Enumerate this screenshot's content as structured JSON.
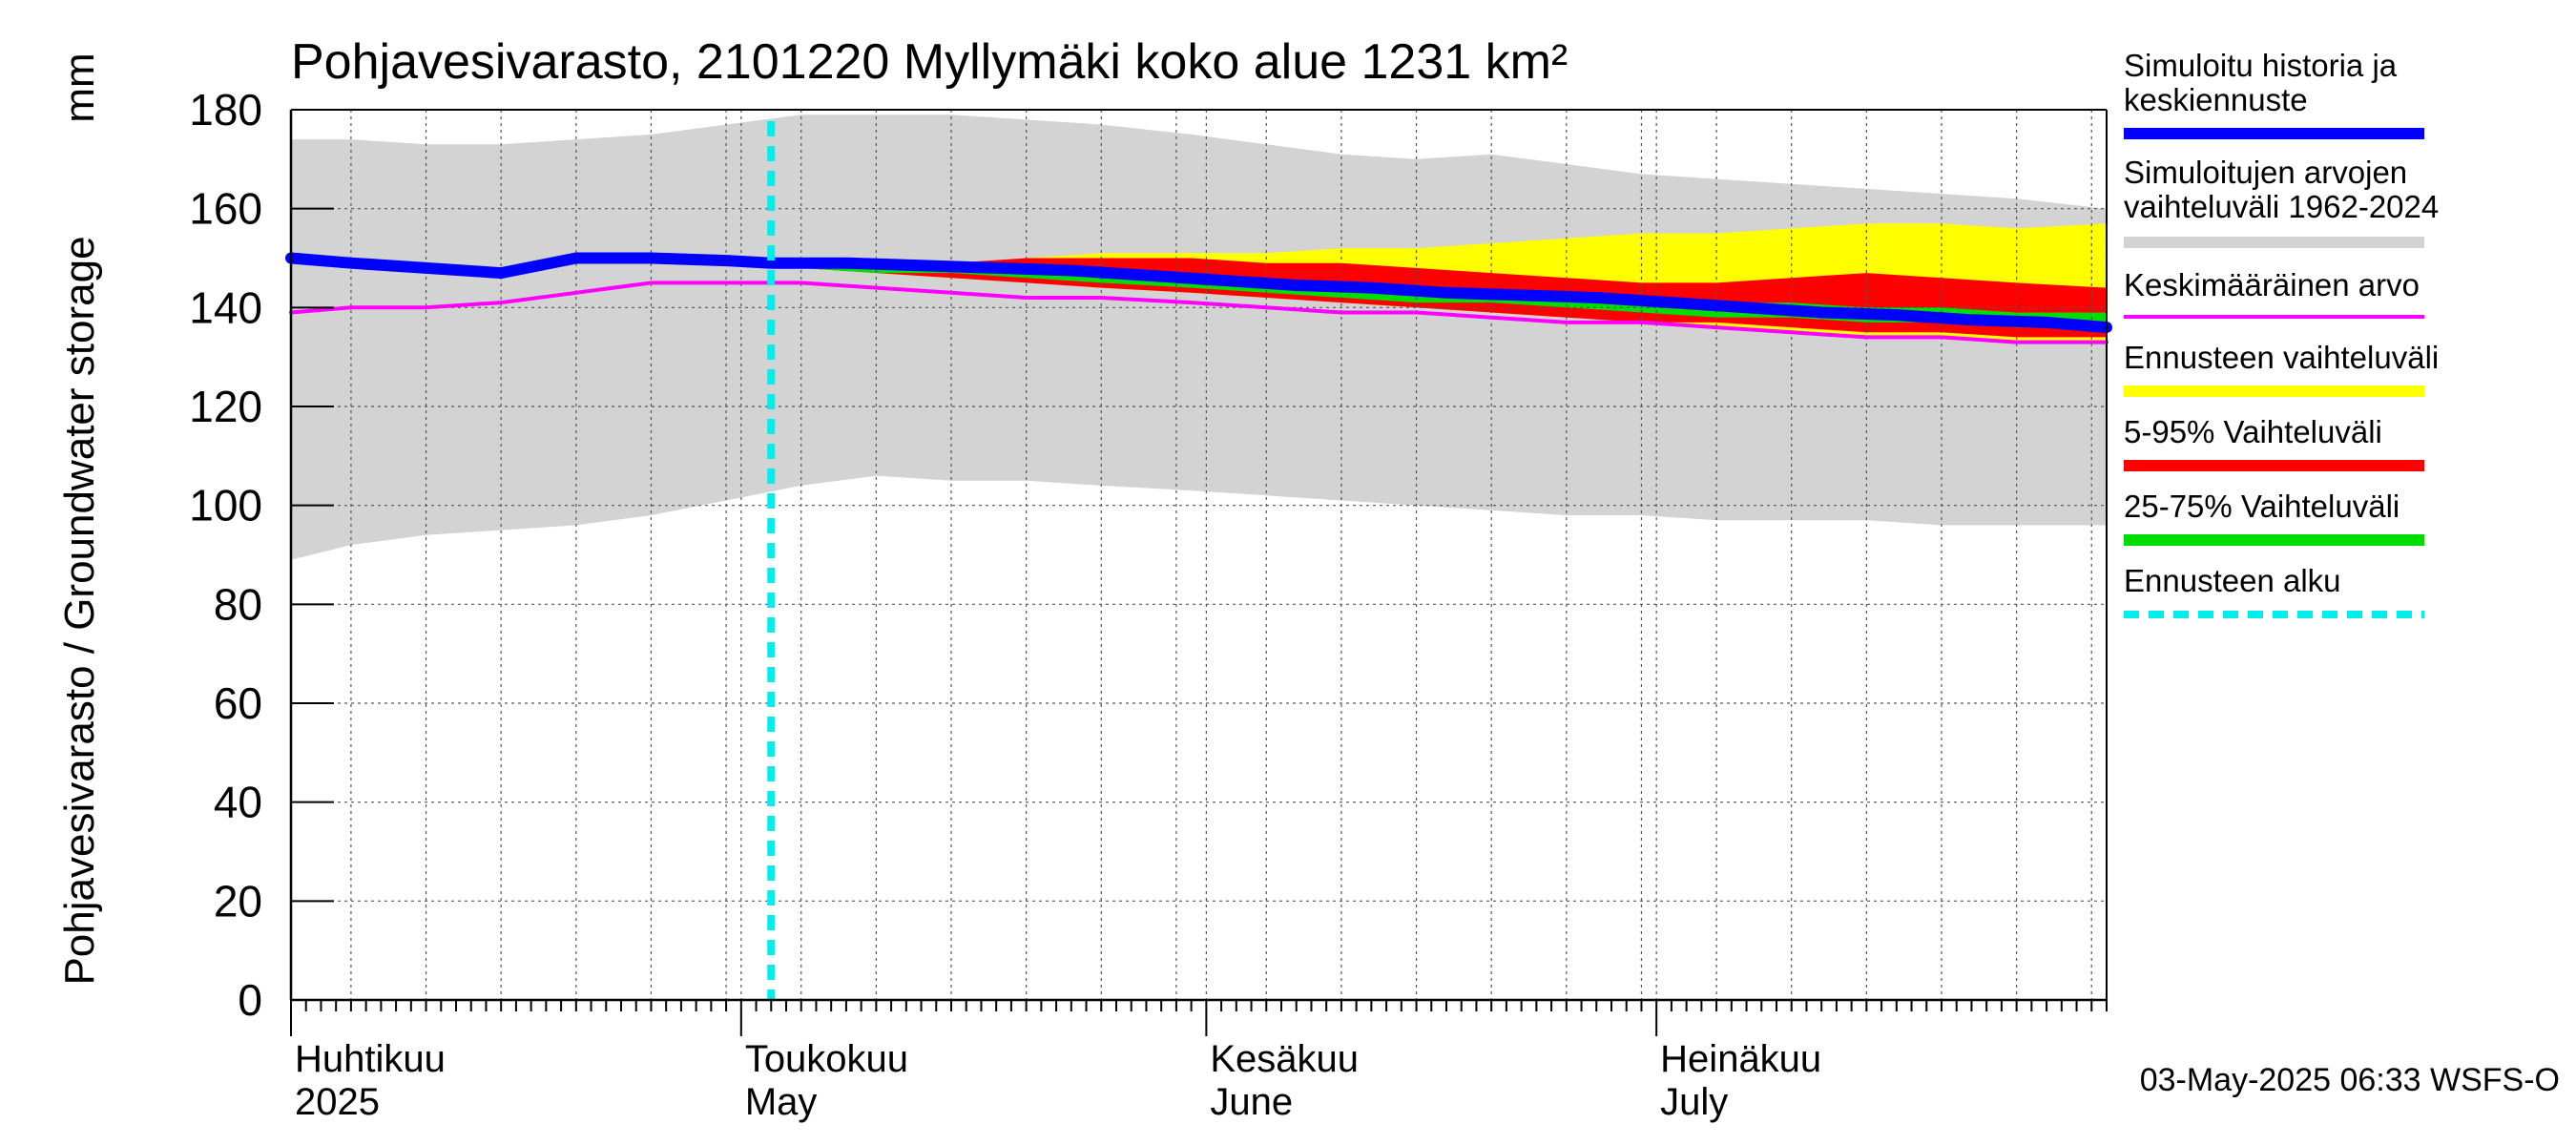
{
  "chart_data": {
    "type": "area",
    "title": "Pohjavesivarasto, 2101220 Myllymäki koko alue 1231 km²",
    "ylabel": "Pohjavesivarasto / Groundwater storage",
    "yunit": "mm",
    "ylim": [
      0,
      180
    ],
    "yticks": [
      0,
      20,
      40,
      60,
      80,
      100,
      120,
      140,
      160,
      180
    ],
    "xlim": [
      "2025-04-01",
      "2025-07-31"
    ],
    "month_labels": [
      {
        "date": "2025-04-01",
        "fi": "Huhtikuu",
        "en": "2025"
      },
      {
        "date": "2025-05-01",
        "fi": "Toukokuu",
        "en": "May"
      },
      {
        "date": "2025-06-01",
        "fi": "Kesäkuu",
        "en": "June"
      },
      {
        "date": "2025-07-01",
        "fi": "Heinäkuu",
        "en": "July"
      }
    ],
    "forecast_start": "2025-05-03",
    "footer": "03-May-2025 06:33 WSFS-O",
    "grid": true,
    "legend_position": "right",
    "legend": [
      {
        "key": "history",
        "label": "Simuloitu historia ja keskiennuste",
        "color": "#0000ff",
        "style": "thick"
      },
      {
        "key": "range_hist",
        "label": "Simuloitujen arvojen vaihteluväli 1962-2024",
        "color": "#d3d3d3",
        "style": "thick"
      },
      {
        "key": "mean",
        "label": "Keskimääräinen arvo",
        "color": "#ff00ff",
        "style": "thin"
      },
      {
        "key": "fc_range",
        "label": "Ennusteen vaihteluväli",
        "color": "#ffff00",
        "style": "thick"
      },
      {
        "key": "p5_95",
        "label": "5-95% Vaihteluväli",
        "color": "#ff0000",
        "style": "thick"
      },
      {
        "key": "p25_75",
        "label": "25-75% Vaihteluväli",
        "color": "#00dd00",
        "style": "thick"
      },
      {
        "key": "fc_start",
        "label": "Ennusteen alku",
        "color": "#00eeee",
        "style": "dashed"
      }
    ],
    "series": {
      "hist_range": {
        "name": "Simuloitujen arvojen vaihteluväli 1962-2024",
        "x": [
          "2025-04-01",
          "2025-04-05",
          "2025-04-10",
          "2025-04-15",
          "2025-04-20",
          "2025-04-25",
          "2025-04-30",
          "2025-05-05",
          "2025-05-10",
          "2025-05-15",
          "2025-05-20",
          "2025-05-25",
          "2025-05-31",
          "2025-06-05",
          "2025-06-10",
          "2025-06-15",
          "2025-06-20",
          "2025-06-25",
          "2025-06-30",
          "2025-07-05",
          "2025-07-10",
          "2025-07-15",
          "2025-07-20",
          "2025-07-25",
          "2025-07-31"
        ],
        "low": [
          89,
          92,
          94,
          95,
          96,
          98,
          101,
          104,
          106,
          105,
          105,
          104,
          103,
          102,
          101,
          100,
          99,
          98,
          98,
          97,
          97,
          97,
          96,
          96,
          96
        ],
        "high": [
          174,
          174,
          173,
          173,
          174,
          175,
          177,
          179,
          179,
          179,
          178,
          177,
          175,
          173,
          171,
          170,
          171,
          169,
          167,
          166,
          165,
          164,
          163,
          162,
          160
        ]
      },
      "fc_range": {
        "name": "Ennusteen vaihteluväli",
        "x": [
          "2025-05-05",
          "2025-05-10",
          "2025-05-15",
          "2025-05-20",
          "2025-05-25",
          "2025-05-31",
          "2025-06-05",
          "2025-06-10",
          "2025-06-15",
          "2025-06-20",
          "2025-06-25",
          "2025-06-30",
          "2025-07-05",
          "2025-07-10",
          "2025-07-15",
          "2025-07-20",
          "2025-07-25",
          "2025-07-31"
        ],
        "low": [
          148,
          147,
          146,
          145,
          144,
          143,
          142,
          141,
          140,
          139,
          138,
          137,
          136,
          135,
          134,
          134,
          133,
          133
        ],
        "high": [
          149,
          149,
          149,
          150,
          151,
          151,
          151,
          152,
          152,
          153,
          154,
          155,
          155,
          156,
          157,
          157,
          156,
          157
        ]
      },
      "p5_95": {
        "name": "5-95% Vaihteluväli",
        "x": [
          "2025-05-05",
          "2025-05-10",
          "2025-05-15",
          "2025-05-20",
          "2025-05-25",
          "2025-05-31",
          "2025-06-05",
          "2025-06-10",
          "2025-06-15",
          "2025-06-20",
          "2025-06-25",
          "2025-06-30",
          "2025-07-05",
          "2025-07-10",
          "2025-07-15",
          "2025-07-20",
          "2025-07-25",
          "2025-07-31"
        ],
        "low": [
          148,
          147,
          146,
          145,
          144,
          143,
          142,
          141,
          140,
          139,
          138,
          137,
          137,
          136,
          135,
          135,
          134,
          134
        ],
        "high": [
          149,
          149,
          149,
          150,
          150,
          150,
          149,
          149,
          148,
          147,
          146,
          145,
          145,
          146,
          147,
          146,
          145,
          144
        ]
      },
      "p25_75": {
        "name": "25-75% Vaihteluväli",
        "x": [
          "2025-05-05",
          "2025-05-10",
          "2025-05-15",
          "2025-05-20",
          "2025-05-25",
          "2025-05-31",
          "2025-06-05",
          "2025-06-10",
          "2025-06-15",
          "2025-06-20",
          "2025-06-25",
          "2025-06-30",
          "2025-07-05",
          "2025-07-10",
          "2025-07-15",
          "2025-07-20",
          "2025-07-25",
          "2025-07-31"
        ],
        "low": [
          148,
          147,
          147,
          146,
          145,
          144,
          143,
          142,
          141,
          141,
          140,
          139,
          138,
          138,
          137,
          137,
          136,
          136
        ],
        "high": [
          149,
          148,
          148,
          147,
          146,
          145,
          145,
          144,
          143,
          143,
          142,
          142,
          141,
          141,
          140,
          140,
          139,
          139
        ]
      },
      "history": {
        "name": "Simuloitu historia ja keskiennuste",
        "x": [
          "2025-04-01",
          "2025-04-05",
          "2025-04-10",
          "2025-04-15",
          "2025-04-20",
          "2025-04-25",
          "2025-04-30",
          "2025-05-03",
          "2025-05-08",
          "2025-05-13",
          "2025-05-18",
          "2025-05-23",
          "2025-05-28",
          "2025-06-02",
          "2025-06-07",
          "2025-06-12",
          "2025-06-17",
          "2025-06-22",
          "2025-06-27",
          "2025-07-02",
          "2025-07-07",
          "2025-07-12",
          "2025-07-17",
          "2025-07-22",
          "2025-07-27",
          "2025-07-31"
        ],
        "y": [
          150,
          149,
          148,
          147,
          150,
          150,
          149.5,
          149,
          149,
          148.5,
          148,
          147.5,
          146.5,
          145.5,
          144.5,
          144,
          143,
          142.5,
          142,
          141,
          140,
          139,
          138.5,
          137.5,
          137,
          136
        ]
      },
      "mean": {
        "name": "Keskimääräinen arvo",
        "x": [
          "2025-04-01",
          "2025-04-05",
          "2025-04-10",
          "2025-04-15",
          "2025-04-20",
          "2025-04-25",
          "2025-04-30",
          "2025-05-05",
          "2025-05-10",
          "2025-05-15",
          "2025-05-20",
          "2025-05-25",
          "2025-05-31",
          "2025-06-05",
          "2025-06-10",
          "2025-06-15",
          "2025-06-20",
          "2025-06-25",
          "2025-06-30",
          "2025-07-05",
          "2025-07-10",
          "2025-07-15",
          "2025-07-20",
          "2025-07-25",
          "2025-07-31"
        ],
        "y": [
          139,
          140,
          140,
          141,
          143,
          145,
          145,
          145,
          144,
          143,
          142,
          142,
          141,
          140,
          139,
          139,
          138,
          137,
          137,
          136,
          135,
          134,
          134,
          133,
          133
        ]
      }
    }
  }
}
